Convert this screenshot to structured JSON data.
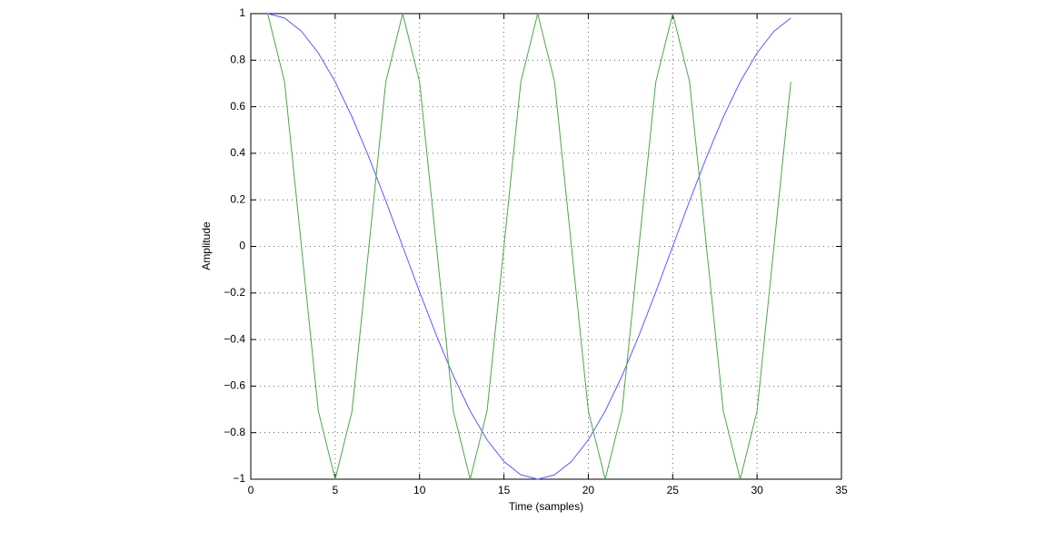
{
  "chart_data": {
    "type": "line",
    "x_label": "Time (samples)",
    "y_label": "Amplitude",
    "x": [
      1,
      2,
      3,
      4,
      5,
      6,
      7,
      8,
      9,
      10,
      11,
      12,
      13,
      14,
      15,
      16,
      17,
      18,
      19,
      20,
      21,
      22,
      23,
      24,
      25,
      26,
      27,
      28,
      29,
      30,
      31,
      32
    ],
    "series": [
      {
        "color": "#5a5aff",
        "values": [
          1,
          0.981,
          0.924,
          0.831,
          0.707,
          0.556,
          0.383,
          0.195,
          0,
          -0.195,
          -0.383,
          -0.556,
          -0.707,
          -0.831,
          -0.924,
          -0.981,
          -1,
          -0.981,
          -0.924,
          -0.831,
          -0.707,
          -0.556,
          -0.383,
          -0.195,
          0,
          0.195,
          0.383,
          0.556,
          0.707,
          0.831,
          0.924,
          0.981
        ]
      },
      {
        "color": "#4ca64c",
        "values": [
          1,
          0.707,
          0,
          -0.707,
          -1,
          -0.707,
          0,
          0.707,
          1,
          0.707,
          0,
          -0.707,
          -1,
          -0.707,
          0,
          0.707,
          1,
          0.707,
          0,
          -0.707,
          -1,
          -0.707,
          0,
          0.707,
          1,
          0.707,
          0,
          -0.707,
          -1,
          -0.707,
          0,
          0.707
        ]
      }
    ],
    "xlim": [
      0,
      35
    ],
    "xticks": [
      0,
      5,
      10,
      15,
      20,
      25,
      30,
      35
    ],
    "ylim": [
      -1,
      1
    ],
    "yticks": [
      {
        "value": -1,
        "label": "−1"
      },
      {
        "value": -0.8,
        "label": "−0.8"
      },
      {
        "value": -0.6,
        "label": "−0.6"
      },
      {
        "value": -0.4,
        "label": "−0.4"
      },
      {
        "value": -0.2,
        "label": "−0.2"
      },
      0,
      0.2,
      0.4,
      0.6,
      0.8,
      1
    ],
    "grid": true
  }
}
